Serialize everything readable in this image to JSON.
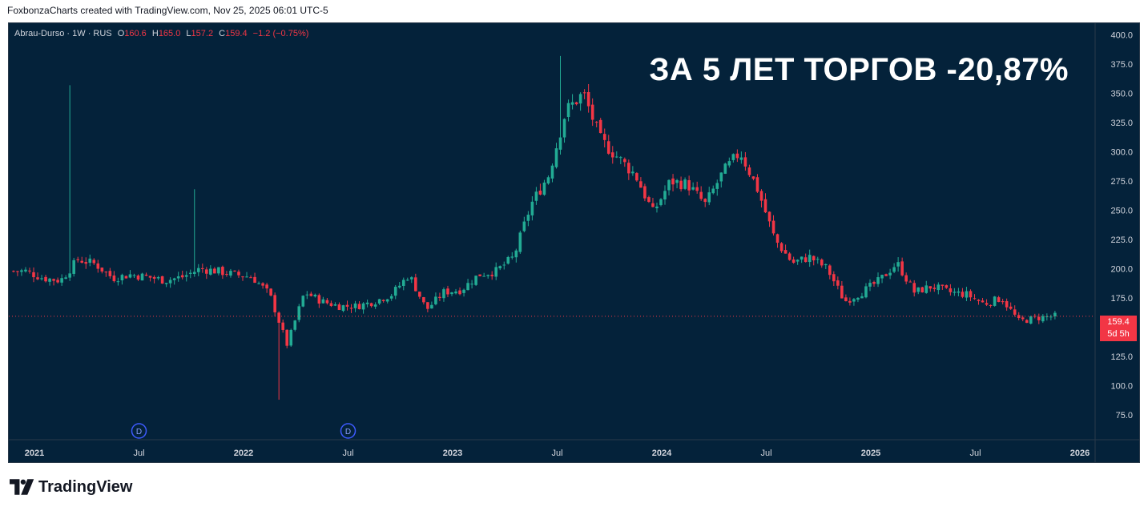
{
  "caption": "FoxbonzaCharts created with TradingView.com, Nov 25, 2025 06:01 UTC-5",
  "legend": {
    "symbol": "Abrau-Durso · 1W · RUS",
    "open_label": "O",
    "open": "160.6",
    "high_label": "H",
    "high": "165.0",
    "low_label": "L",
    "low": "157.2",
    "close_label": "C",
    "close": "159.4",
    "change": "−1.2 (−0.75%)"
  },
  "headline": "ЗА 5 ЛЕТ ТОРГОВ -20,87%",
  "last_price": {
    "value": "159.4",
    "countdown": "5d 5h"
  },
  "brand": {
    "name": "TradingView",
    "icon": "tradingview-logo"
  },
  "chart_data": {
    "type": "candlestick",
    "timeframe": "1W",
    "ylim": [
      60,
      410
    ],
    "y_ticks": [
      "400.0",
      "375.0",
      "350.0",
      "325.0",
      "300.0",
      "275.0",
      "250.0",
      "225.0",
      "200.0",
      "175.0",
      "125.0",
      "100.0",
      "75.0"
    ],
    "x_ticks": [
      {
        "label": "2021",
        "date": "2021-01"
      },
      {
        "label": "Jul",
        "date": "2021-07"
      },
      {
        "label": "2022",
        "date": "2022-01"
      },
      {
        "label": "Jul",
        "date": "2022-07"
      },
      {
        "label": "2023",
        "date": "2023-01"
      },
      {
        "label": "Jul",
        "date": "2023-07"
      },
      {
        "label": "2024",
        "date": "2024-01"
      },
      {
        "label": "Jul",
        "date": "2024-07"
      },
      {
        "label": "2025",
        "date": "2025-01"
      },
      {
        "label": "Jul",
        "date": "2025-07"
      },
      {
        "label": "2026",
        "date": "2026-01"
      }
    ],
    "price_line": 159.4,
    "dividend_markers": [
      {
        "label": "D",
        "date": "2021-07"
      },
      {
        "label": "D",
        "date": "2022-07"
      }
    ],
    "colors": {
      "up": "#22ab94",
      "down": "#f23645",
      "background": "#04223a",
      "axis_text": "#d1d4dc"
    },
    "price_path": [
      {
        "date": "2020-12",
        "close": 198
      },
      {
        "date": "2021-01",
        "close": 192
      },
      {
        "date": "2021-02",
        "close": 190
      },
      {
        "date": "2021-03",
        "close": 208
      },
      {
        "date": "2021-04",
        "close": 204
      },
      {
        "date": "2021-05",
        "close": 192
      },
      {
        "date": "2021-06",
        "close": 195
      },
      {
        "date": "2021-07",
        "close": 193
      },
      {
        "date": "2021-08",
        "close": 190
      },
      {
        "date": "2021-09",
        "close": 193
      },
      {
        "date": "2021-10",
        "close": 200
      },
      {
        "date": "2021-11",
        "close": 198
      },
      {
        "date": "2021-12",
        "close": 195
      },
      {
        "date": "2022-01",
        "close": 193
      },
      {
        "date": "2022-02",
        "close": 178
      },
      {
        "date": "2022-03",
        "close": 135
      },
      {
        "date": "2022-04",
        "close": 180
      },
      {
        "date": "2022-05",
        "close": 172
      },
      {
        "date": "2022-06",
        "close": 168
      },
      {
        "date": "2022-07",
        "close": 168
      },
      {
        "date": "2022-08",
        "close": 172
      },
      {
        "date": "2022-09",
        "close": 178
      },
      {
        "date": "2022-10",
        "close": 195
      },
      {
        "date": "2022-11",
        "close": 165
      },
      {
        "date": "2022-12",
        "close": 180
      },
      {
        "date": "2023-01",
        "close": 182
      },
      {
        "date": "2023-02",
        "close": 195
      },
      {
        "date": "2023-03",
        "close": 198
      },
      {
        "date": "2023-04",
        "close": 210
      },
      {
        "date": "2023-05",
        "close": 255
      },
      {
        "date": "2023-06",
        "close": 280
      },
      {
        "date": "2023-07",
        "close": 335
      },
      {
        "date": "2023-08",
        "close": 350
      },
      {
        "date": "2023-09",
        "close": 310
      },
      {
        "date": "2023-10",
        "close": 295
      },
      {
        "date": "2023-11",
        "close": 280
      },
      {
        "date": "2023-12",
        "close": 248
      },
      {
        "date": "2024-01",
        "close": 275
      },
      {
        "date": "2024-02",
        "close": 272
      },
      {
        "date": "2024-03",
        "close": 255
      },
      {
        "date": "2024-04",
        "close": 282
      },
      {
        "date": "2024-05",
        "close": 300
      },
      {
        "date": "2024-06",
        "close": 268
      },
      {
        "date": "2024-07",
        "close": 225
      },
      {
        "date": "2024-08",
        "close": 205
      },
      {
        "date": "2024-09",
        "close": 210
      },
      {
        "date": "2024-10",
        "close": 200
      },
      {
        "date": "2024-11",
        "close": 172
      },
      {
        "date": "2024-12",
        "close": 180
      },
      {
        "date": "2025-01",
        "close": 190
      },
      {
        "date": "2025-02",
        "close": 205
      },
      {
        "date": "2025-03",
        "close": 180
      },
      {
        "date": "2025-04",
        "close": 185
      },
      {
        "date": "2025-05",
        "close": 180
      },
      {
        "date": "2025-06",
        "close": 178
      },
      {
        "date": "2025-07",
        "close": 170
      },
      {
        "date": "2025-08",
        "close": 175
      },
      {
        "date": "2025-09",
        "close": 155
      },
      {
        "date": "2025-10",
        "close": 158
      },
      {
        "date": "2025-11",
        "close": 159.4
      }
    ],
    "spikes": [
      {
        "date": "2021-03",
        "high": 357
      },
      {
        "date": "2021-10",
        "high": 268
      },
      {
        "date": "2022-03",
        "low": 88
      },
      {
        "date": "2023-07",
        "high": 382
      }
    ]
  }
}
